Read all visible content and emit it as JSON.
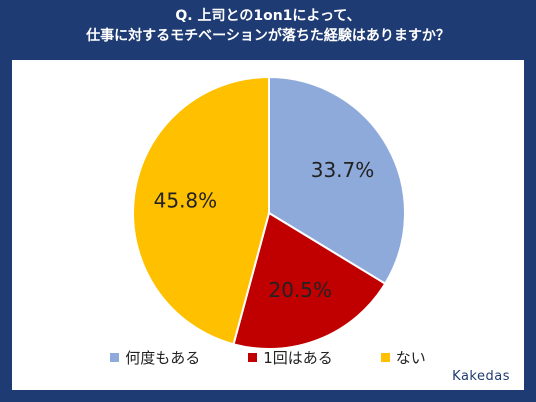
{
  "title": {
    "line1": "Q. 上司との1on1によって、",
    "line2": "仕事に対するモチベーションが落ちた経験はありますか？"
  },
  "brand": "Kakedas",
  "colors": {
    "background": "#1f3b73",
    "panel": "#ffffff"
  },
  "chart_data": {
    "type": "pie",
    "title": "Q. 上司との1on1によって、仕事に対するモチベーションが落ちた経験はありますか？",
    "unit": "%",
    "start_angle_deg": 0,
    "direction": "clockwise",
    "legend_position": "bottom",
    "slices": [
      {
        "label": "何度もある",
        "value": 33.7,
        "display": "33.7%",
        "color": "#8eaadb"
      },
      {
        "label": "1回はある",
        "value": 20.5,
        "display": "20.5%",
        "color": "#c00000"
      },
      {
        "label": "ない",
        "value": 45.8,
        "display": "45.8%",
        "color": "#ffc000"
      }
    ]
  }
}
